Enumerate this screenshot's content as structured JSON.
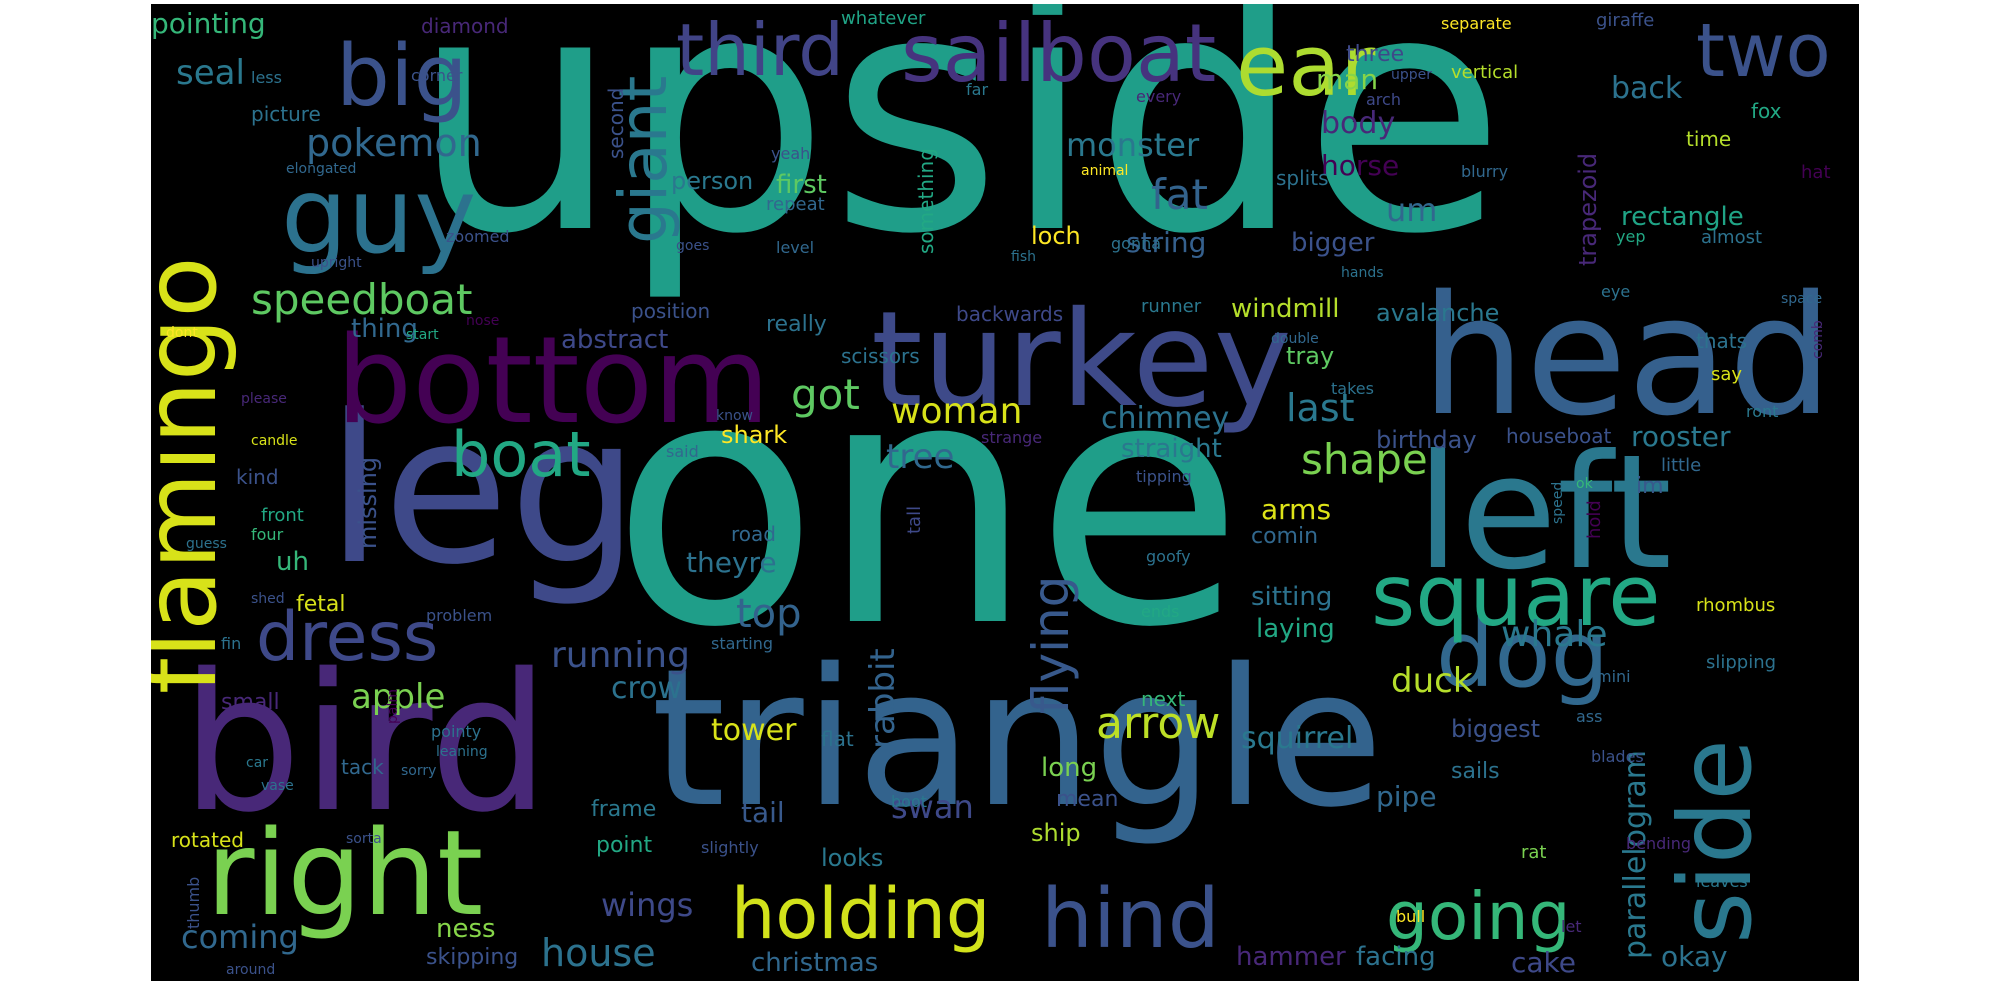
{
  "background": "#000000",
  "words": [
    {
      "t": "upside",
      "c": "#1f9e89"
    },
    {
      "t": "one",
      "c": "#1f9e89"
    },
    {
      "t": "triangle",
      "c": "#33638d"
    },
    {
      "t": "leg",
      "c": "#3e4989"
    },
    {
      "t": "bird",
      "c": "#482878"
    },
    {
      "t": "head",
      "c": "#35608d"
    },
    {
      "t": "left",
      "c": "#2a788e"
    },
    {
      "t": "turkey",
      "c": "#3e4a89"
    },
    {
      "t": "bottom",
      "c": "#440154"
    },
    {
      "t": "flamingo",
      "c": "#d8e219"
    },
    {
      "t": "right",
      "c": "#7ad151"
    },
    {
      "t": "side",
      "c": "#2a788e"
    },
    {
      "t": "guy",
      "c": "#2c728e"
    },
    {
      "t": "big",
      "c": "#3b528b"
    },
    {
      "t": "sailboat",
      "c": "#46337e"
    },
    {
      "t": "dog",
      "c": "#31688e"
    },
    {
      "t": "square",
      "c": "#22a884"
    },
    {
      "t": "giant",
      "c": "#2a788e"
    },
    {
      "t": "ear",
      "c": "#addc30"
    },
    {
      "t": "third",
      "c": "#414487"
    },
    {
      "t": "two",
      "c": "#3b528b"
    },
    {
      "t": "hind",
      "c": "#3b528b"
    },
    {
      "t": "holding",
      "c": "#d2e21b"
    },
    {
      "t": "going",
      "c": "#35b779"
    },
    {
      "t": "dress",
      "c": "#3e4989"
    },
    {
      "t": "boat",
      "c": "#22a884"
    },
    {
      "t": "flying",
      "c": "#38598c"
    },
    {
      "t": "speedboat",
      "c": "#5ec962"
    },
    {
      "t": "pokemon",
      "c": "#31688e"
    },
    {
      "t": "monster",
      "c": "#2a788e"
    },
    {
      "t": "fat",
      "c": "#33638d"
    },
    {
      "t": "shape",
      "c": "#7ad151"
    },
    {
      "t": "arrow",
      "c": "#bddf26"
    },
    {
      "t": "parallelogram",
      "c": "#2a788e"
    },
    {
      "t": "rabbit",
      "c": "#33638d"
    },
    {
      "t": "whale",
      "c": "#2a788e"
    },
    {
      "t": "duck",
      "c": "#b5de2b"
    },
    {
      "t": "last",
      "c": "#2a788e"
    },
    {
      "t": "got",
      "c": "#5ec962"
    },
    {
      "t": "woman",
      "c": "#d8e219"
    },
    {
      "t": "chimney",
      "c": "#2c728e"
    },
    {
      "t": "tree",
      "c": "#31688e"
    },
    {
      "t": "top",
      "c": "#33638d"
    },
    {
      "t": "running",
      "c": "#3b528b"
    },
    {
      "t": "apple",
      "c": "#7ad151"
    },
    {
      "t": "seal",
      "c": "#2a788e"
    },
    {
      "t": "pointing",
      "c": "#35b779"
    },
    {
      "t": "back",
      "c": "#2c728e"
    },
    {
      "t": "man",
      "c": "#86d549"
    },
    {
      "t": "body",
      "c": "#482878"
    },
    {
      "t": "horse",
      "c": "#440154"
    },
    {
      "t": "um",
      "c": "#31688e"
    },
    {
      "t": "bigger",
      "c": "#3b528b"
    },
    {
      "t": "string",
      "c": "#35608d"
    },
    {
      "t": "loch",
      "c": "#fde725"
    },
    {
      "t": "rectangle",
      "c": "#20a486"
    },
    {
      "t": "trapezoid",
      "c": "#482878"
    },
    {
      "t": "splits",
      "c": "#2c728e"
    },
    {
      "t": "windmill",
      "c": "#b5de2b"
    },
    {
      "t": "avalanche",
      "c": "#2a788e"
    },
    {
      "t": "tray",
      "c": "#5ec962"
    },
    {
      "t": "straight",
      "c": "#2a788e"
    },
    {
      "t": "birthday",
      "c": "#3b528b"
    },
    {
      "t": "rooster",
      "c": "#2a788e"
    },
    {
      "t": "houseboat",
      "c": "#3b528b"
    },
    {
      "t": "little",
      "c": "#31688e"
    },
    {
      "t": "im",
      "c": "#38598c"
    },
    {
      "t": "hold",
      "c": "#440154"
    },
    {
      "t": "arms",
      "c": "#dde318"
    },
    {
      "t": "comin",
      "c": "#31688e"
    },
    {
      "t": "sitting",
      "c": "#2c728e"
    },
    {
      "t": "laying",
      "c": "#22a884"
    },
    {
      "t": "tower",
      "c": "#d8e219"
    },
    {
      "t": "squirrel",
      "c": "#2a788e"
    },
    {
      "t": "crow",
      "c": "#2c728e"
    },
    {
      "t": "swan",
      "c": "#3e4989"
    },
    {
      "t": "tail",
      "c": "#38598c"
    },
    {
      "t": "long",
      "c": "#7ad151"
    },
    {
      "t": "mean",
      "c": "#3b528b"
    },
    {
      "t": "ship",
      "c": "#addc30"
    },
    {
      "t": "pipe",
      "c": "#31688e"
    },
    {
      "t": "sails",
      "c": "#2c728e"
    },
    {
      "t": "biggest",
      "c": "#3b528b"
    },
    {
      "t": "wings",
      "c": "#3e4989"
    },
    {
      "t": "coming",
      "c": "#31688e"
    },
    {
      "t": "house",
      "c": "#2c728e"
    },
    {
      "t": "christmas",
      "c": "#31688e"
    },
    {
      "t": "hammer",
      "c": "#482878"
    },
    {
      "t": "facing",
      "c": "#2c728e"
    },
    {
      "t": "cake",
      "c": "#3e4989"
    },
    {
      "t": "okay",
      "c": "#2c728e"
    },
    {
      "t": "skipping",
      "c": "#3b528b"
    },
    {
      "t": "ness",
      "c": "#86d549"
    },
    {
      "t": "theyre",
      "c": "#2c728e"
    },
    {
      "t": "uh",
      "c": "#35b779"
    },
    {
      "t": "missing",
      "c": "#3b528b"
    },
    {
      "t": "fetal",
      "c": "#d8e219"
    },
    {
      "t": "small",
      "c": "#482878"
    },
    {
      "t": "thing",
      "c": "#31688e"
    },
    {
      "t": "abstract",
      "c": "#3e4989"
    },
    {
      "t": "really",
      "c": "#2c728e"
    },
    {
      "t": "scissors",
      "c": "#2c728e"
    },
    {
      "t": "shark",
      "c": "#fde725"
    },
    {
      "t": "backwards",
      "c": "#3e4989"
    },
    {
      "t": "something",
      "c": "#22a884"
    },
    {
      "t": "first",
      "c": "#5ec962"
    },
    {
      "t": "person",
      "c": "#2a788e"
    },
    {
      "t": "second",
      "c": "#3b528b"
    },
    {
      "t": "position",
      "c": "#3b528b"
    },
    {
      "t": "diamond",
      "c": "#482878"
    },
    {
      "t": "picture",
      "c": "#2c728e"
    },
    {
      "t": "elongated",
      "c": "#31688e"
    },
    {
      "t": "whatever",
      "c": "#20a486"
    },
    {
      "t": "separate",
      "c": "#fde725"
    },
    {
      "t": "giraffe",
      "c": "#3b528b"
    },
    {
      "t": "vertical",
      "c": "#b5de2b"
    },
    {
      "t": "three",
      "c": "#3e4989"
    },
    {
      "t": "upper",
      "c": "#3b528b"
    },
    {
      "t": "arch",
      "c": "#3e4989"
    },
    {
      "t": "fox",
      "c": "#22a884"
    },
    {
      "t": "time",
      "c": "#b5de2b"
    },
    {
      "t": "hat",
      "c": "#440154"
    },
    {
      "t": "almost",
      "c": "#2c728e"
    },
    {
      "t": "yep",
      "c": "#22a884"
    },
    {
      "t": "blurry",
      "c": "#31688e"
    },
    {
      "t": "eye",
      "c": "#2c728e"
    },
    {
      "t": "hands",
      "c": "#2c728e"
    },
    {
      "t": "space",
      "c": "#31688e"
    },
    {
      "t": "comb",
      "c": "#482878"
    },
    {
      "t": "thats",
      "c": "#2c728e"
    },
    {
      "t": "say",
      "c": "#d8e219"
    },
    {
      "t": "ront",
      "c": "#2a788e"
    },
    {
      "t": "ok",
      "c": "#35b779"
    },
    {
      "t": "speed",
      "c": "#2c728e"
    },
    {
      "t": "rhombus",
      "c": "#d8e219"
    },
    {
      "t": "mini",
      "c": "#31688e"
    },
    {
      "t": "slipping",
      "c": "#2c728e"
    },
    {
      "t": "ass",
      "c": "#31688e"
    },
    {
      "t": "blades",
      "c": "#3b528b"
    },
    {
      "t": "bending",
      "c": "#482878"
    },
    {
      "t": "leaves",
      "c": "#2a788e"
    },
    {
      "t": "rat",
      "c": "#7ad151"
    },
    {
      "t": "let",
      "c": "#482878"
    },
    {
      "t": "bull",
      "c": "#fde725"
    },
    {
      "t": "runner",
      "c": "#2a788e"
    },
    {
      "t": "double",
      "c": "#31688e"
    },
    {
      "t": "takes",
      "c": "#2c728e"
    },
    {
      "t": "strange",
      "c": "#482878"
    },
    {
      "t": "tipping",
      "c": "#3b528b"
    },
    {
      "t": "goofy",
      "c": "#2c728e"
    },
    {
      "t": "ends",
      "c": "#22a884"
    },
    {
      "t": "next",
      "c": "#35b779"
    },
    {
      "t": "flat",
      "c": "#2c728e"
    },
    {
      "t": "boot",
      "c": "#2a788e"
    },
    {
      "t": "slightly",
      "c": "#3b528b"
    },
    {
      "t": "frame",
      "c": "#2a788e"
    },
    {
      "t": "point",
      "c": "#22a884"
    },
    {
      "t": "looks",
      "c": "#2a788e"
    },
    {
      "t": "road",
      "c": "#31688e"
    },
    {
      "t": "tall",
      "c": "#3e4989"
    },
    {
      "t": "starting",
      "c": "#31688e"
    },
    {
      "t": "said",
      "c": "#31688e"
    },
    {
      "t": "know",
      "c": "#3b528b"
    },
    {
      "t": "gonna",
      "c": "#2c728e"
    },
    {
      "t": "fish",
      "c": "#2c728e"
    },
    {
      "t": "level",
      "c": "#31688e"
    },
    {
      "t": "repeat",
      "c": "#31688e"
    },
    {
      "t": "yeah",
      "c": "#3b528b"
    },
    {
      "t": "goes",
      "c": "#3b528b"
    },
    {
      "t": "animal",
      "c": "#fde725"
    },
    {
      "t": "every",
      "c": "#482878"
    },
    {
      "t": "far",
      "c": "#2a788e"
    },
    {
      "t": "less",
      "c": "#2c728e"
    },
    {
      "t": "corner",
      "c": "#3b528b"
    },
    {
      "t": "zoomed",
      "c": "#3b528b"
    },
    {
      "t": "upright",
      "c": "#3b528b"
    },
    {
      "t": "dont",
      "c": "#fde725"
    },
    {
      "t": "start",
      "c": "#22a884"
    },
    {
      "t": "nose",
      "c": "#440154"
    },
    {
      "t": "please",
      "c": "#482878"
    },
    {
      "t": "candle",
      "c": "#d8e219"
    },
    {
      "t": "kind",
      "c": "#3b528b"
    },
    {
      "t": "front",
      "c": "#22a884"
    },
    {
      "t": "four",
      "c": "#35b779"
    },
    {
      "t": "guess",
      "c": "#2c728e"
    },
    {
      "t": "shed",
      "c": "#3b528b"
    },
    {
      "t": "problem",
      "c": "#3b528b"
    },
    {
      "t": "fin",
      "c": "#2c728e"
    },
    {
      "t": "palm",
      "c": "#440154"
    },
    {
      "t": "pointy",
      "c": "#2c728e"
    },
    {
      "t": "leaning",
      "c": "#2c728e"
    },
    {
      "t": "car",
      "c": "#2a788e"
    },
    {
      "t": "sorry",
      "c": "#31688e"
    },
    {
      "t": "vase",
      "c": "#2c728e"
    },
    {
      "t": "sorta",
      "c": "#3b528b"
    },
    {
      "t": "rotated",
      "c": "#d8e219"
    },
    {
      "t": "thumb",
      "c": "#3b528b"
    },
    {
      "t": "around",
      "c": "#3b528b"
    },
    {
      "t": "tack",
      "c": "#31688e"
    }
  ]
}
